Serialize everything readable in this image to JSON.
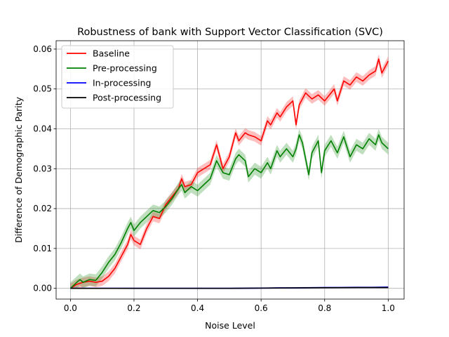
{
  "chart_data": {
    "type": "line",
    "title": "Robustness of bank with Support Vector Classification (SVC)",
    "xlabel": "Noise Level",
    "ylabel": "Difference of Demographic Parity",
    "xlim": [
      -0.045,
      1.05
    ],
    "ylim": [
      -0.0027,
      0.0621
    ],
    "xticks": [
      0.0,
      0.2,
      0.4,
      0.6,
      0.8,
      1.0
    ],
    "xtick_labels": [
      "0.0",
      "0.2",
      "0.4",
      "0.6",
      "0.8",
      "1.0"
    ],
    "yticks": [
      0.0,
      0.01,
      0.02,
      0.03,
      0.04,
      0.05,
      0.06
    ],
    "ytick_labels": [
      "0.00",
      "0.01",
      "0.02",
      "0.03",
      "0.04",
      "0.05",
      "0.06"
    ],
    "grid": true,
    "legend_position": "top-left",
    "series": [
      {
        "name": "Baseline",
        "color": "#ff0000",
        "band_width": 0.0012,
        "x": [
          0.0,
          0.02,
          0.04,
          0.06,
          0.08,
          0.1,
          0.12,
          0.14,
          0.16,
          0.18,
          0.19,
          0.2,
          0.22,
          0.24,
          0.26,
          0.28,
          0.3,
          0.32,
          0.34,
          0.35,
          0.36,
          0.38,
          0.4,
          0.42,
          0.44,
          0.46,
          0.47,
          0.48,
          0.5,
          0.52,
          0.53,
          0.55,
          0.56,
          0.58,
          0.6,
          0.62,
          0.63,
          0.65,
          0.66,
          0.68,
          0.7,
          0.71,
          0.72,
          0.74,
          0.76,
          0.78,
          0.8,
          0.82,
          0.83,
          0.84,
          0.86,
          0.88,
          0.9,
          0.92,
          0.94,
          0.96,
          0.97,
          0.98,
          1.0
        ],
        "y": [
          0.0,
          0.001,
          0.0015,
          0.0018,
          0.0015,
          0.0018,
          0.003,
          0.005,
          0.008,
          0.011,
          0.0135,
          0.012,
          0.011,
          0.015,
          0.018,
          0.0175,
          0.021,
          0.023,
          0.025,
          0.0275,
          0.0255,
          0.026,
          0.029,
          0.03,
          0.031,
          0.036,
          0.033,
          0.03,
          0.033,
          0.039,
          0.037,
          0.039,
          0.0385,
          0.038,
          0.037,
          0.042,
          0.041,
          0.044,
          0.043,
          0.0455,
          0.047,
          0.041,
          0.046,
          0.049,
          0.0475,
          0.0485,
          0.047,
          0.049,
          0.05,
          0.047,
          0.052,
          0.051,
          0.053,
          0.052,
          0.0535,
          0.0545,
          0.0575,
          0.054,
          0.057
        ]
      },
      {
        "name": "Pre-processing",
        "color": "#008000",
        "band_width": 0.0015,
        "x": [
          0.0,
          0.02,
          0.03,
          0.04,
          0.06,
          0.08,
          0.1,
          0.12,
          0.14,
          0.16,
          0.18,
          0.19,
          0.2,
          0.22,
          0.24,
          0.26,
          0.28,
          0.3,
          0.32,
          0.34,
          0.35,
          0.36,
          0.38,
          0.4,
          0.42,
          0.44,
          0.46,
          0.48,
          0.5,
          0.52,
          0.53,
          0.55,
          0.56,
          0.58,
          0.6,
          0.62,
          0.63,
          0.65,
          0.66,
          0.68,
          0.7,
          0.71,
          0.72,
          0.73,
          0.75,
          0.76,
          0.78,
          0.79,
          0.8,
          0.82,
          0.84,
          0.86,
          0.88,
          0.9,
          0.92,
          0.94,
          0.96,
          0.97,
          0.98,
          1.0
        ],
        "y": [
          0.0,
          0.0015,
          0.0022,
          0.0015,
          0.0022,
          0.002,
          0.004,
          0.0065,
          0.0085,
          0.0115,
          0.015,
          0.0165,
          0.0145,
          0.0165,
          0.018,
          0.0195,
          0.019,
          0.0205,
          0.0225,
          0.025,
          0.026,
          0.024,
          0.0255,
          0.0245,
          0.026,
          0.0275,
          0.032,
          0.029,
          0.0285,
          0.0325,
          0.0335,
          0.032,
          0.028,
          0.03,
          0.029,
          0.0315,
          0.03,
          0.0345,
          0.033,
          0.035,
          0.033,
          0.035,
          0.0385,
          0.0365,
          0.0285,
          0.034,
          0.037,
          0.029,
          0.0345,
          0.037,
          0.034,
          0.038,
          0.033,
          0.036,
          0.035,
          0.0375,
          0.036,
          0.0385,
          0.0365,
          0.035
        ]
      },
      {
        "name": "In-processing",
        "color": "#0000ff",
        "band_width": 0.0002,
        "x": [
          0.0,
          0.2,
          0.4,
          0.5,
          0.6,
          0.65,
          0.7,
          0.75,
          0.8,
          0.85,
          0.9,
          0.95,
          1.0
        ],
        "y": [
          0.0,
          0.0,
          0.0,
          0.0,
          5e-05,
          0.0001,
          0.0001,
          0.00015,
          0.0002,
          0.0002,
          0.00025,
          0.00025,
          0.0003
        ]
      },
      {
        "name": "Post-processing",
        "color": "#000000",
        "band_width": 0.0,
        "x": [
          0.0,
          0.2,
          0.4,
          0.5,
          0.6,
          0.7,
          0.8,
          0.9,
          1.0
        ],
        "y": [
          0.0,
          0.0,
          0.0,
          0.0,
          5e-05,
          0.0001,
          0.00015,
          0.0002,
          0.0002
        ]
      }
    ]
  }
}
